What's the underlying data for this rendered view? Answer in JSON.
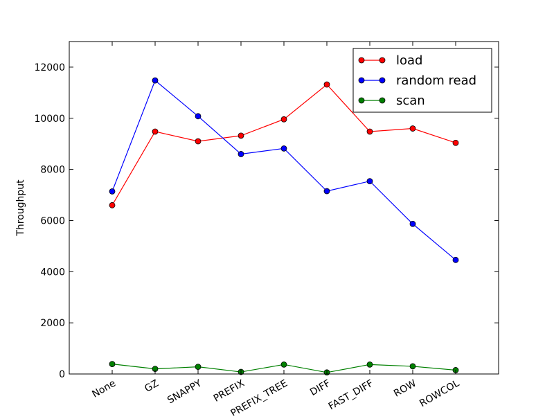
{
  "chart_data": {
    "type": "line",
    "title": "",
    "xlabel": "",
    "ylabel": "Throughput",
    "categories": [
      "None",
      "GZ",
      "SNAPPY",
      "PREFIX",
      "PREFIX_TREE",
      "DIFF",
      "FAST_DIFF",
      "ROW",
      "ROWCOL"
    ],
    "ylim": [
      0,
      13000
    ],
    "yticks": [
      0,
      2000,
      4000,
      6000,
      8000,
      10000,
      12000
    ],
    "grid": false,
    "legend_position": "top-right",
    "series": [
      {
        "name": "load",
        "color": "#ff0000",
        "marker": "circle",
        "values": [
          6600,
          9480,
          9100,
          9320,
          9960,
          11320,
          9480,
          9600,
          9040
        ]
      },
      {
        "name": "random read",
        "color": "#0000ff",
        "marker": "circle",
        "values": [
          7140,
          11480,
          10080,
          8600,
          8820,
          7150,
          7540,
          5870,
          4460
        ]
      },
      {
        "name": "scan",
        "color": "#008000",
        "marker": "circle",
        "values": [
          390,
          200,
          280,
          80,
          370,
          60,
          370,
          300,
          150
        ]
      }
    ]
  }
}
